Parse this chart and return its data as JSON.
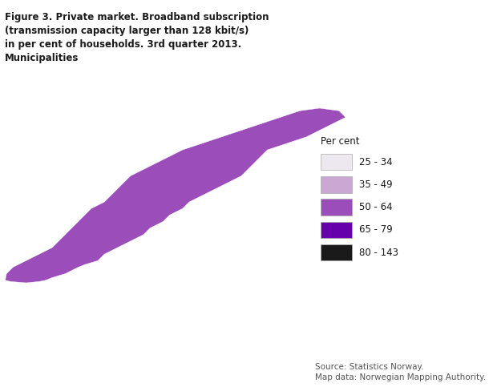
{
  "title": "Figure 3. Private market. Broadband subscription\n(transmission capacity larger than 128 kbit/s)\nin per cent of households. 3rd quarter 2013.\nMunicipalities",
  "legend_title": "Per cent",
  "legend_labels": [
    "25 - 34",
    "35 - 49",
    "50 - 64",
    "65 - 79",
    "80 - 143"
  ],
  "legend_colors": [
    "#ede8f0",
    "#c9a8d4",
    "#9b4dba",
    "#6600aa",
    "#1a1a1a"
  ],
  "source_text": "Source: Statistics Norway.\nMap data: Norwegian Mapping Authority.",
  "background_color": "#ffffff",
  "figsize": [
    6.1,
    4.88
  ],
  "dpi": 100,
  "map_xlim": [
    4.5,
    31.5
  ],
  "map_ylim": [
    57.5,
    71.5
  ],
  "title_fontsize": 8.5,
  "legend_fontsize": 8.5,
  "source_fontsize": 7.5
}
